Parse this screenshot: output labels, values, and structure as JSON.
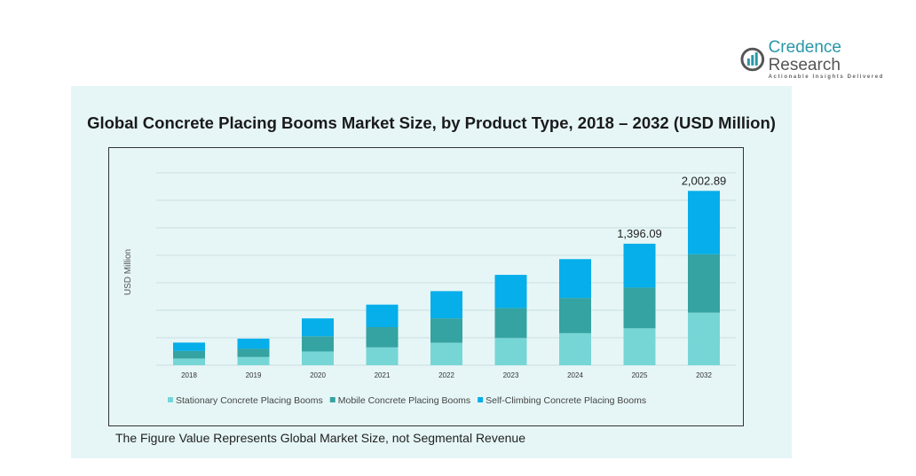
{
  "brand": {
    "name_part1": "Credence",
    "name_part2": "Research",
    "tagline": "Actionable Insights Delivered"
  },
  "footnote": "The Figure Value Represents Global Market Size, not Segmental Revenue",
  "colors": {
    "stationary": "#76d6d6",
    "mobile": "#35a3a1",
    "self_climbing": "#06aeea",
    "panel": "#e6f6f7"
  },
  "chart_data": {
    "type": "bar",
    "stacked": true,
    "title": "Global Concrete  Placing Booms Market Size, by Product Type, 2018 – 2032 (USD Million)",
    "xlabel": "",
    "ylabel": "USD Million",
    "categories": [
      "2018",
      "2019",
      "2020",
      "2021",
      "2022",
      "2023",
      "2024",
      "2025",
      "2032"
    ],
    "series": [
      {
        "name": "Stationary Concrete Placing Booms",
        "values": [
          77,
          94,
          158,
          205,
          258,
          313,
          368,
          424,
          604
        ]
      },
      {
        "name": "Mobile Concrete Placing Booms",
        "values": [
          87,
          95,
          175,
          233,
          280,
          343,
          405,
          468,
          671
        ]
      },
      {
        "name": "Self-Climbing Concrete Placing Booms",
        "values": [
          96,
          116,
          205,
          258,
          313,
          382,
          446,
          504,
          728
        ]
      }
    ],
    "data_labels": [
      {
        "category": "2025",
        "text": "1,396.09"
      },
      {
        "category": "2032",
        "text": "2,002.89"
      }
    ],
    "ylim": [
      0,
      2200
    ],
    "grid": true,
    "legend": "bottom"
  }
}
